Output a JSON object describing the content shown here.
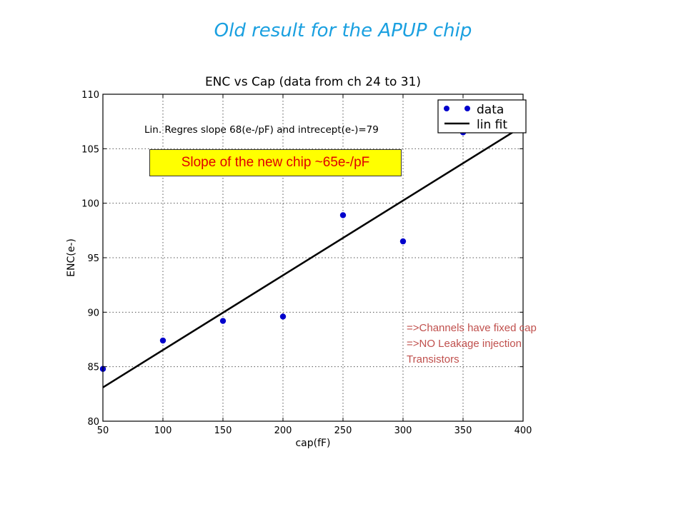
{
  "slide": {
    "title": "Old result for the APUP chip"
  },
  "chart_data": {
    "type": "scatter",
    "title": "ENC vs Cap (data from ch 24 to 31)",
    "xlabel": "cap(fF)",
    "ylabel": "ENC(e-)",
    "xlim": [
      50,
      400
    ],
    "ylim": [
      80,
      110
    ],
    "xticks": [
      50,
      100,
      150,
      200,
      250,
      300,
      350,
      400
    ],
    "yticks": [
      80,
      85,
      90,
      95,
      100,
      105,
      110
    ],
    "grid": true,
    "legend_position": "top-right",
    "series": [
      {
        "name": "data",
        "kind": "points",
        "color": "#0000cc",
        "x": [
          50,
          100,
          150,
          200,
          250,
          300,
          350,
          400
        ],
        "y": [
          84.8,
          87.4,
          89.2,
          89.6,
          98.9,
          96.5,
          106.5,
          107.9
        ]
      },
      {
        "name": "lin fit",
        "kind": "line",
        "color": "#000000",
        "x": [
          50,
          400
        ],
        "y": [
          83.1,
          107.1
        ]
      }
    ],
    "annotations": [
      "Lin. Regres slope 68(e-/pF) and intrecept(e-)=79"
    ]
  },
  "callout": {
    "text": "Slope of the new chip ~65e-/pF"
  },
  "notes": [
    "=>Channels have fixed cap",
    "=>NO Leakage injection",
    "Transistors"
  ]
}
